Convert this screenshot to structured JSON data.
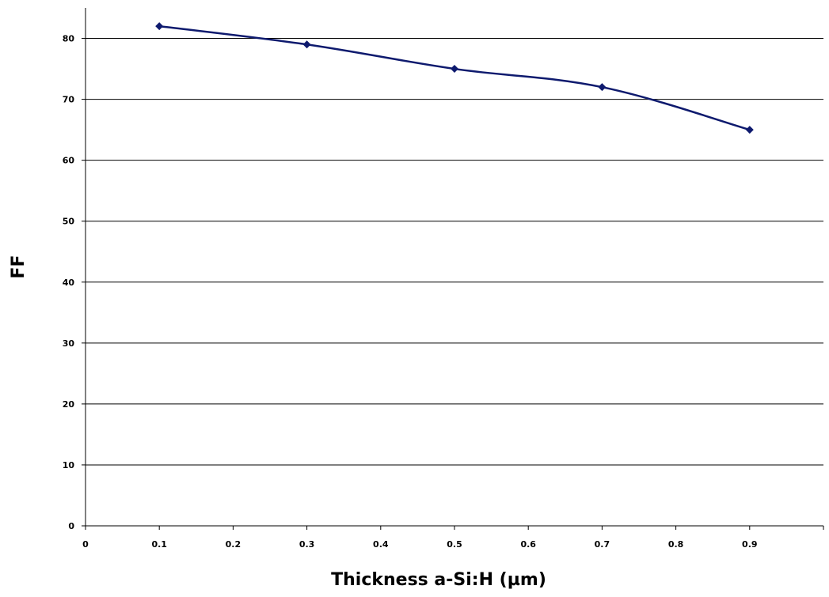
{
  "chart_data": {
    "type": "line",
    "title": "",
    "xlabel": "Thickness a-Si:H (µm)",
    "ylabel": "FF",
    "xlim": [
      0,
      1
    ],
    "ylim": [
      0,
      85
    ],
    "x_ticks": [
      0,
      0.1,
      0.2,
      0.3,
      0.4,
      0.5,
      0.6,
      0.7,
      0.8,
      0.9
    ],
    "x_tick_labels": [
      "0",
      "0.1",
      "0.2",
      "0.3",
      "0.4",
      "0.5",
      "0.6",
      "0.7",
      "0.8",
      "0.9"
    ],
    "y_ticks": [
      0,
      10,
      20,
      30,
      40,
      50,
      60,
      70,
      80
    ],
    "y_tick_labels": [
      "0",
      "10",
      "20",
      "30",
      "40",
      "50",
      "60",
      "70",
      "80"
    ],
    "grid": "horizontal",
    "legend": "none",
    "series": [
      {
        "x": [
          0.1,
          0.3,
          0.5,
          0.7,
          0.9
        ],
        "values": [
          82,
          79,
          75,
          72,
          65
        ],
        "color": "#0e1a6e",
        "marker": "diamond",
        "smooth": true
      }
    ]
  }
}
